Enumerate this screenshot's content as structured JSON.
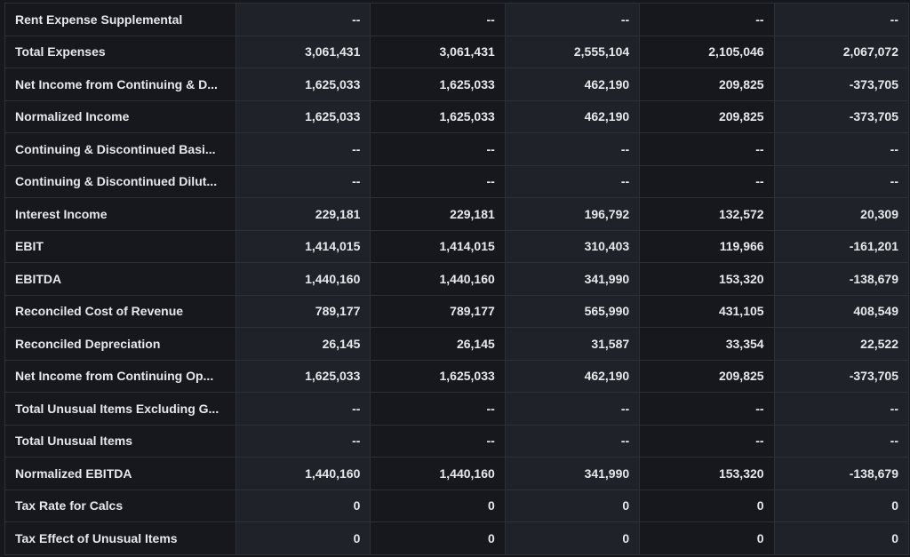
{
  "rows": [
    {
      "label": "Rent Expense Supplemental",
      "values": [
        "--",
        "--",
        "--",
        "--",
        "--"
      ]
    },
    {
      "label": "Total Expenses",
      "values": [
        "3,061,431",
        "3,061,431",
        "2,555,104",
        "2,105,046",
        "2,067,072"
      ]
    },
    {
      "label": "Net Income from Continuing & D...",
      "values": [
        "1,625,033",
        "1,625,033",
        "462,190",
        "209,825",
        "-373,705"
      ]
    },
    {
      "label": "Normalized Income",
      "values": [
        "1,625,033",
        "1,625,033",
        "462,190",
        "209,825",
        "-373,705"
      ]
    },
    {
      "label": "Continuing & Discontinued Basi...",
      "values": [
        "--",
        "--",
        "--",
        "--",
        "--"
      ]
    },
    {
      "label": "Continuing & Discontinued Dilut...",
      "values": [
        "--",
        "--",
        "--",
        "--",
        "--"
      ]
    },
    {
      "label": "Interest Income",
      "values": [
        "229,181",
        "229,181",
        "196,792",
        "132,572",
        "20,309"
      ]
    },
    {
      "label": "EBIT",
      "values": [
        "1,414,015",
        "1,414,015",
        "310,403",
        "119,966",
        "-161,201"
      ]
    },
    {
      "label": "EBITDA",
      "values": [
        "1,440,160",
        "1,440,160",
        "341,990",
        "153,320",
        "-138,679"
      ]
    },
    {
      "label": "Reconciled Cost of Revenue",
      "values": [
        "789,177",
        "789,177",
        "565,990",
        "431,105",
        "408,549"
      ]
    },
    {
      "label": "Reconciled Depreciation",
      "values": [
        "26,145",
        "26,145",
        "31,587",
        "33,354",
        "22,522"
      ]
    },
    {
      "label": "Net Income from Continuing Op...",
      "values": [
        "1,625,033",
        "1,625,033",
        "462,190",
        "209,825",
        "-373,705"
      ]
    },
    {
      "label": "Total Unusual Items Excluding G...",
      "values": [
        "--",
        "--",
        "--",
        "--",
        "--"
      ]
    },
    {
      "label": "Total Unusual Items",
      "values": [
        "--",
        "--",
        "--",
        "--",
        "--"
      ]
    },
    {
      "label": "Normalized EBITDA",
      "values": [
        "1,440,160",
        "1,440,160",
        "341,990",
        "153,320",
        "-138,679"
      ]
    },
    {
      "label": "Tax Rate for Calcs",
      "values": [
        "0",
        "0",
        "0",
        "0",
        "0"
      ]
    },
    {
      "label": "Tax Effect of Unusual Items",
      "values": [
        "0",
        "0",
        "0",
        "0",
        "0"
      ]
    }
  ]
}
